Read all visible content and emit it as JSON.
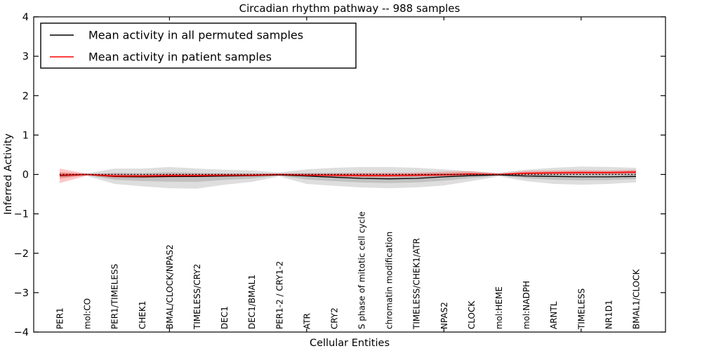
{
  "chart_data": {
    "type": "line",
    "title": "Circadian rhythm pathway -- 988 samples",
    "xlabel": "Cellular Entities",
    "ylabel": "Inferred Activity",
    "ylim": [
      -4,
      4
    ],
    "yticks": [
      4,
      3,
      2,
      1,
      0,
      -1,
      -2,
      -3,
      -4
    ],
    "x_major_tick_indices": [
      4,
      9,
      14,
      19
    ],
    "grid": false,
    "legend_position": "upper left",
    "background": "#ffffff",
    "categories": [
      "PER1",
      "mol:CO",
      "PER1/TIMELESS",
      "CHEK1",
      "BMAL/CLOCK/NPAS2",
      "TIMELESS/CRY2",
      "DEC1",
      "DEC1/BMAL1",
      "PER1-2 / CRY1-2",
      "ATR",
      "CRY2",
      "S phase of mitotic cell cycle",
      "chromatin modification",
      "TIMELESS/CHEK1/ATR",
      "NPAS2",
      "CLOCK",
      "mol:HEME",
      "mol:NADPH",
      "ARNTL",
      "TIMELESS",
      "NR1D1",
      "BMAL1/CLOCK"
    ],
    "zero_line": {
      "value": 0,
      "style": "dotted",
      "color": "#000000"
    },
    "series": [
      {
        "name": "Mean activity in all permuted samples",
        "color": "#000000",
        "band_color": "#000000",
        "band_opacity": 0.13,
        "mean": [
          -0.03,
          0.0,
          -0.05,
          -0.06,
          -0.05,
          -0.05,
          -0.04,
          -0.03,
          -0.01,
          -0.04,
          -0.07,
          -0.1,
          -0.11,
          -0.1,
          -0.06,
          -0.03,
          -0.01,
          -0.04,
          -0.05,
          -0.06,
          -0.06,
          -0.05
        ],
        "band_lower": [
          -0.07,
          -0.04,
          -0.24,
          -0.3,
          -0.35,
          -0.36,
          -0.26,
          -0.19,
          -0.05,
          -0.24,
          -0.29,
          -0.33,
          -0.35,
          -0.33,
          -0.28,
          -0.17,
          -0.05,
          -0.17,
          -0.24,
          -0.26,
          -0.24,
          -0.2
        ],
        "band_upper": [
          0.05,
          0.03,
          0.15,
          0.15,
          0.19,
          0.15,
          0.12,
          0.1,
          0.05,
          0.13,
          0.17,
          0.19,
          0.19,
          0.17,
          0.13,
          0.08,
          0.04,
          0.12,
          0.17,
          0.2,
          0.19,
          0.17
        ]
      },
      {
        "name": "Mean activity in patient samples",
        "color": "#ff0000",
        "band_color": "#ff0000",
        "band_opacity": 0.22,
        "mean": [
          -0.02,
          0.0,
          -0.04,
          -0.04,
          -0.03,
          -0.03,
          -0.02,
          -0.02,
          0.0,
          -0.02,
          -0.02,
          -0.03,
          -0.03,
          -0.02,
          -0.01,
          0.01,
          0.0,
          0.03,
          0.04,
          0.05,
          0.05,
          0.06
        ],
        "band_lower": [
          -0.22,
          -0.03,
          -0.09,
          -0.09,
          -0.08,
          -0.07,
          -0.06,
          -0.05,
          -0.03,
          -0.05,
          -0.06,
          -0.07,
          -0.07,
          -0.06,
          -0.05,
          -0.04,
          -0.02,
          -0.02,
          0.0,
          0.0,
          0.0,
          0.01
        ],
        "band_upper": [
          0.15,
          0.02,
          0.02,
          0.01,
          0.02,
          0.02,
          0.02,
          0.02,
          0.03,
          0.03,
          0.03,
          0.04,
          0.04,
          0.05,
          0.07,
          0.08,
          0.03,
          0.09,
          0.1,
          0.11,
          0.1,
          0.12
        ]
      }
    ]
  }
}
